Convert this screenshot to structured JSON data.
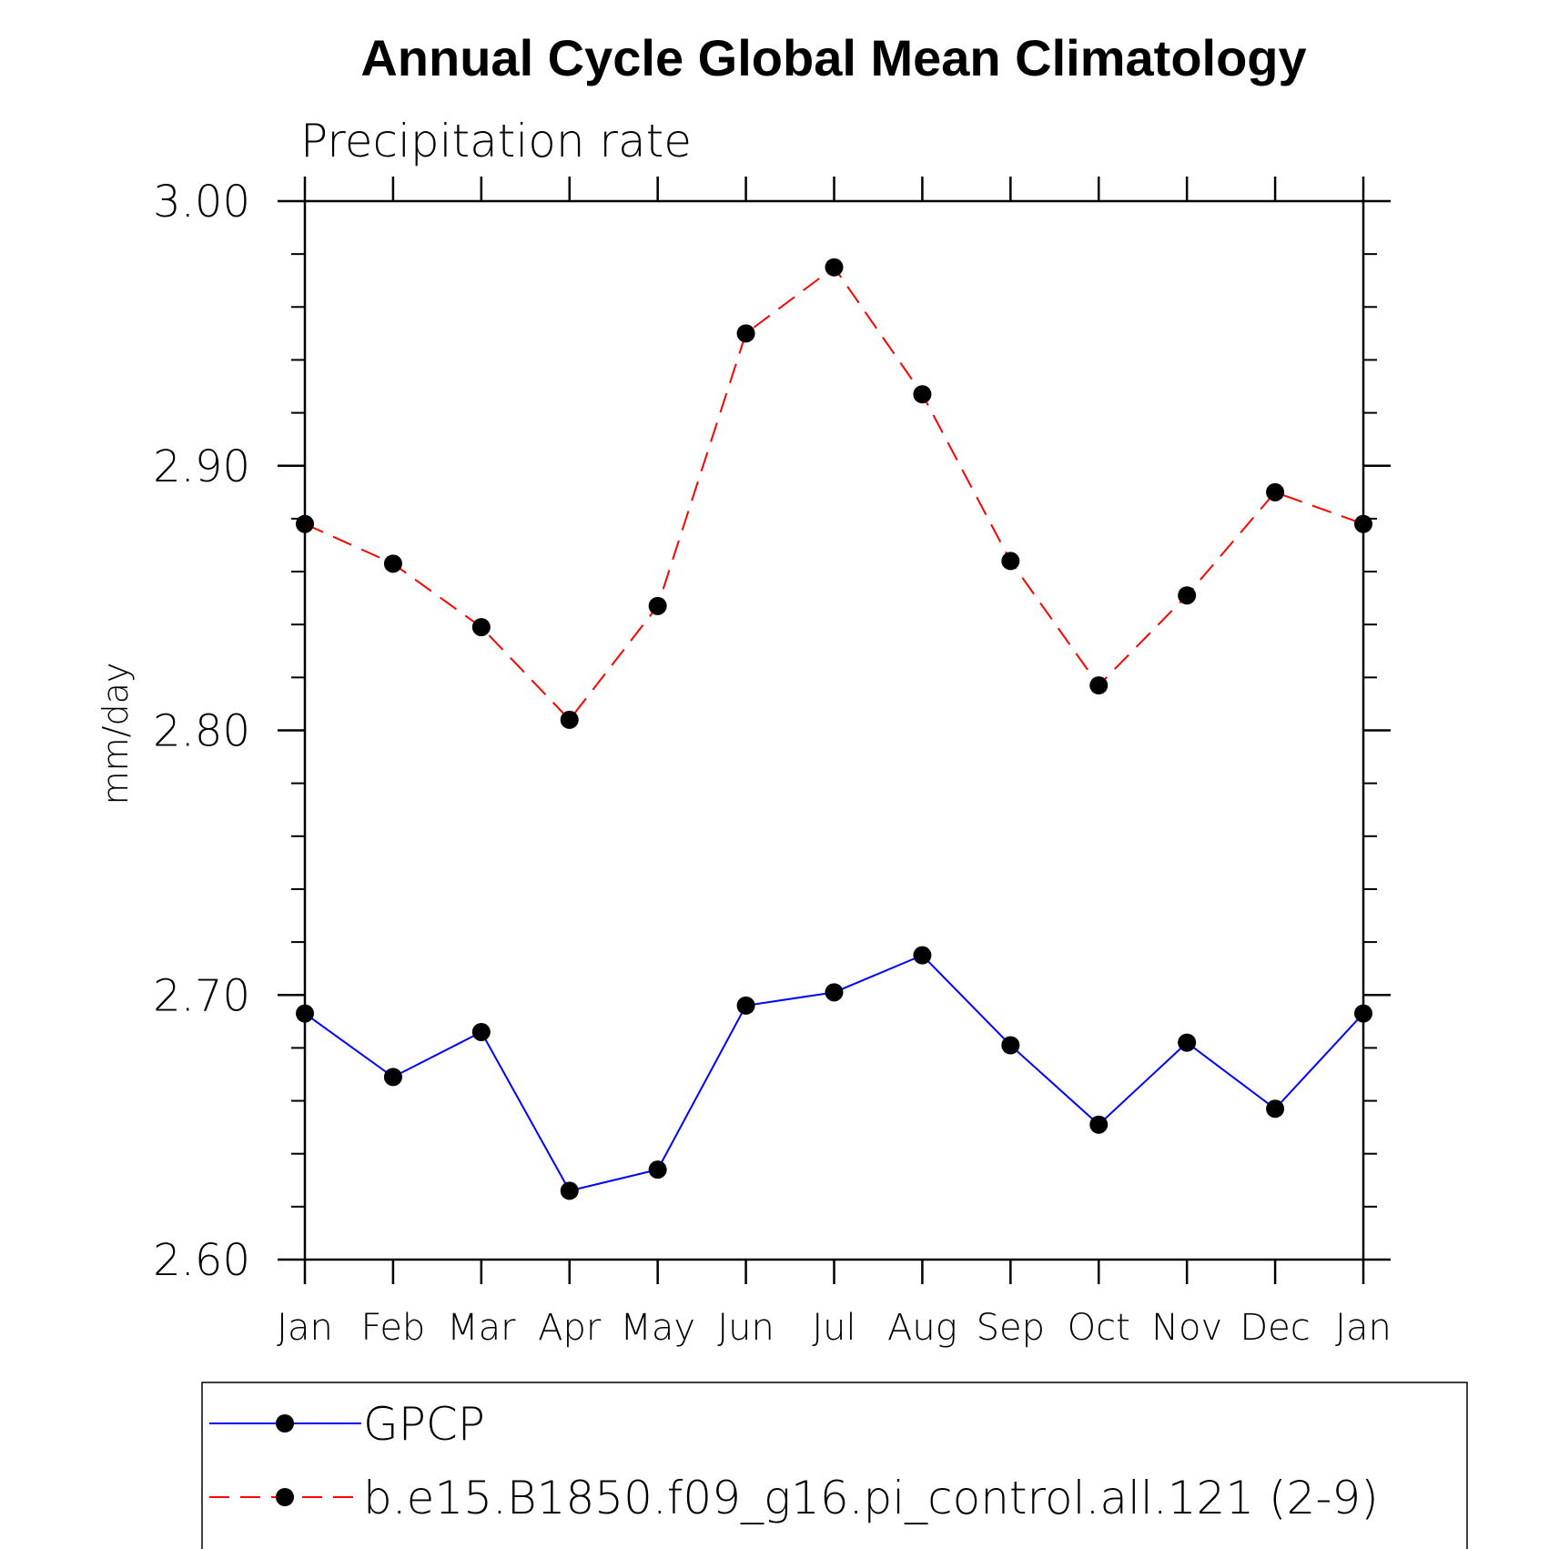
{
  "chart_data": {
    "type": "line",
    "title": "Annual Cycle Global Mean Climatology",
    "subtitle": "Precipitation rate",
    "xlabel": "",
    "ylabel": "mm/day",
    "categories": [
      "Jan",
      "Feb",
      "Mar",
      "Apr",
      "May",
      "Jun",
      "Jul",
      "Aug",
      "Sep",
      "Oct",
      "Nov",
      "Dec",
      "Jan"
    ],
    "ylim": [
      2.6,
      3.0
    ],
    "yticks": [
      "2.60",
      "2.70",
      "2.80",
      "2.90",
      "3.00"
    ],
    "yticks_values": [
      2.6,
      2.7,
      2.8,
      2.9,
      3.0
    ],
    "yminor_step": 0.02,
    "grid": false,
    "legend_position": "bottom",
    "series": [
      {
        "name": "GPCP",
        "color": "#0000ff",
        "dash": "solid",
        "marker": "filled-circle",
        "values": [
          2.693,
          2.669,
          2.686,
          2.626,
          2.634,
          2.696,
          2.701,
          2.715,
          2.681,
          2.651,
          2.682,
          2.657,
          2.693
        ]
      },
      {
        "name": "b.e15.B1850.f09_g16.pi_control.all.121 (2-9)",
        "color": "#ff0000",
        "dash": "dashed",
        "marker": "filled-circle",
        "values": [
          2.878,
          2.863,
          2.839,
          2.804,
          2.847,
          2.95,
          2.975,
          2.927,
          2.864,
          2.817,
          2.851,
          2.89,
          2.878
        ]
      }
    ]
  }
}
